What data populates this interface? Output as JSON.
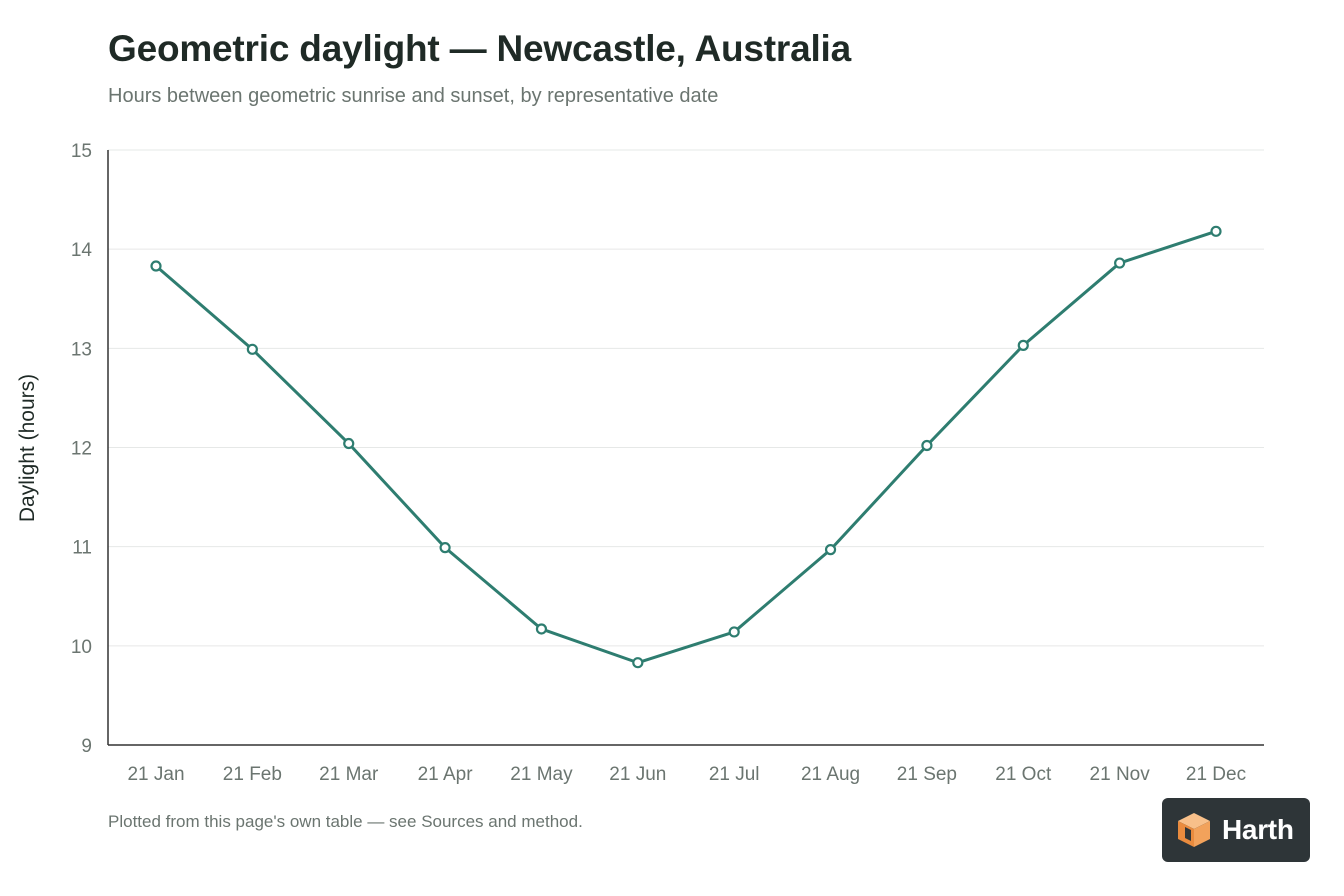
{
  "title": "Geometric daylight — Newcastle, Australia",
  "subtitle": "Hours between geometric sunrise and sunset, by representative date",
  "footnote": "Plotted from this page's own table — see Sources and method.",
  "logo": {
    "text": "Harth",
    "icon": "harth-cube-icon"
  },
  "colors": {
    "line": "#2e7d70",
    "grid": "#e6e8e7",
    "axis": "#333333",
    "tick_text": "#6b7570",
    "label_text": "#1f2a26",
    "logo_bg": "#2e3538",
    "logo_orange": "#f2a25b"
  },
  "chart_data": {
    "type": "line",
    "ylabel": "Daylight (hours)",
    "xlabel": "",
    "ylim": [
      9,
      15
    ],
    "yticks": [
      9,
      10,
      11,
      12,
      13,
      14,
      15
    ],
    "grid": true,
    "categories": [
      "21 Jan",
      "21 Feb",
      "21 Mar",
      "21 Apr",
      "21 May",
      "21 Jun",
      "21 Jul",
      "21 Aug",
      "21 Sep",
      "21 Oct",
      "21 Nov",
      "21 Dec"
    ],
    "series": [
      {
        "values": [
          13.83,
          12.99,
          12.04,
          10.99,
          10.17,
          9.83,
          10.14,
          10.97,
          12.02,
          13.03,
          13.86,
          14.18
        ]
      }
    ]
  }
}
